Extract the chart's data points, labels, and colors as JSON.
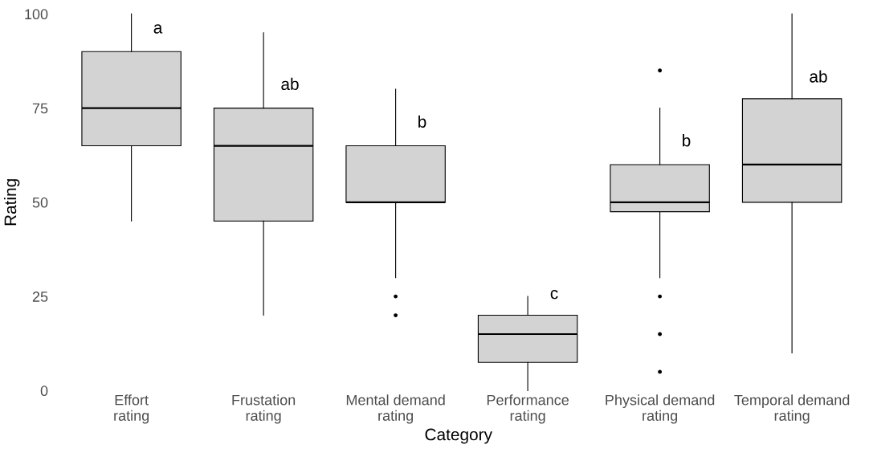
{
  "chart_data": {
    "type": "box",
    "xlabel": "Category",
    "ylabel": "Rating",
    "categories": [
      "Effort\nrating",
      "Frustation\nrating",
      "Mental demand\nrating",
      "Performance\nrating",
      "Physical demand\nrating",
      "Temporal demand\nrating"
    ],
    "color": "#d3d3d3",
    "boxes": [
      {
        "low": 45,
        "q1": 65,
        "median": 75,
        "q3": 90,
        "high": 100
      },
      {
        "low": 20,
        "q1": 45,
        "median": 65,
        "q3": 75,
        "high": 95
      },
      {
        "low": 30,
        "q1": 50,
        "median": 50,
        "q3": 65,
        "high": 80,
        "outliers": [
          25,
          20
        ]
      },
      {
        "low": 0,
        "q1": 7.5,
        "median": 15,
        "q3": 20,
        "high": 25
      },
      {
        "low": 30,
        "q1": 47.5,
        "median": 50,
        "q3": 60,
        "high": 75,
        "outliers": [
          85,
          25,
          15,
          5
        ]
      },
      {
        "low": 10,
        "q1": 50,
        "median": 60,
        "q3": 77.5,
        "high": 100
      }
    ],
    "annotations": [
      {
        "text": "a",
        "x": "Effort\nrating",
        "y": 96
      },
      {
        "text": "ab",
        "x": "Frustation\nrating",
        "y": 81
      },
      {
        "text": "b",
        "x": "Mental demand\nrating",
        "y": 71
      },
      {
        "text": "c",
        "x": "Performance\nrating",
        "y": 25.5
      },
      {
        "text": "b",
        "x": "Physical demand\nrating",
        "y": 66
      },
      {
        "text": "ab",
        "x": "Temporal demand\nrating",
        "y": 83
      }
    ],
    "ylim": [
      0,
      100
    ],
    "yticks": [
      0,
      25,
      50,
      75,
      100
    ],
    "grid": false,
    "legend": false
  }
}
